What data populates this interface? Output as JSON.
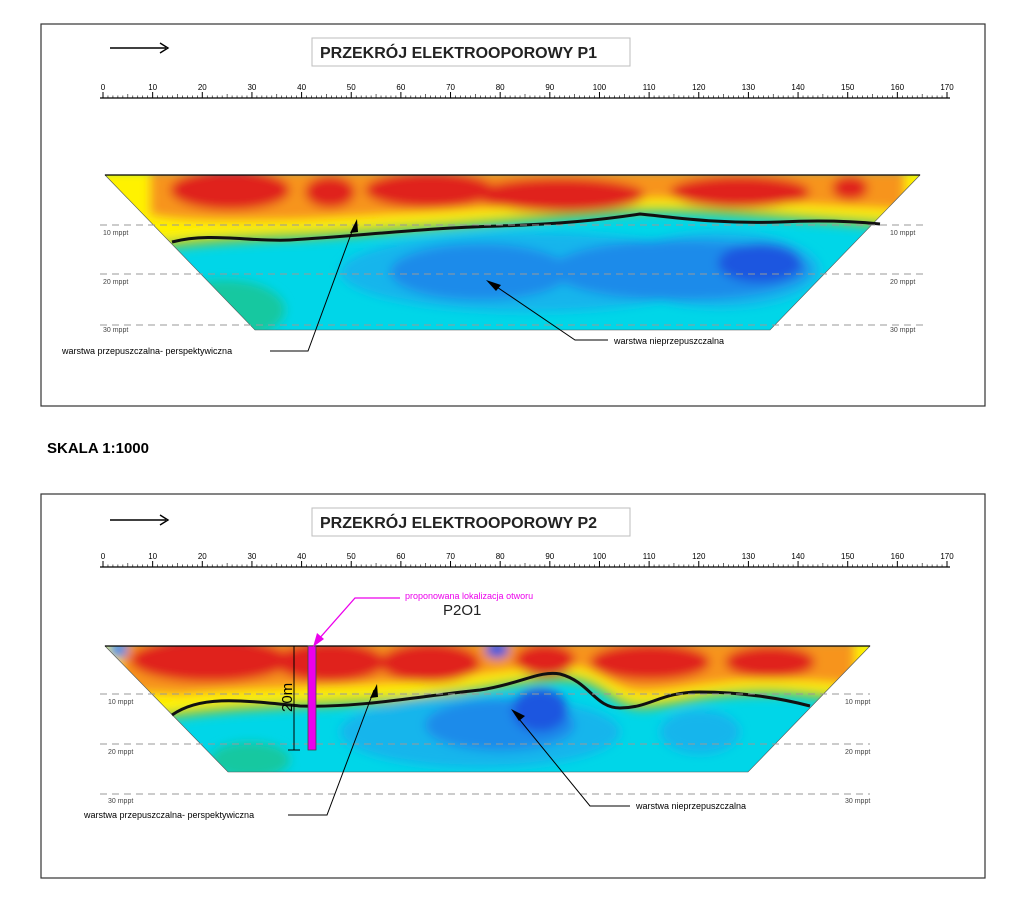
{
  "scale_label": "SKALA 1:1000",
  "colors": {
    "frame": "#333333",
    "high_resistivity": "#e0201b",
    "medium_high": "#f7941d",
    "medium": "#fff200",
    "transition": "#8dc63f",
    "low": "#00d6e8",
    "very_low": "#1a56e0",
    "marker": "#ec00ec"
  },
  "axis": {
    "ticks": [
      "0",
      "10",
      "20",
      "30",
      "40",
      "50",
      "60",
      "70",
      "80",
      "90",
      "100",
      "110",
      "120",
      "130",
      "140",
      "150",
      "160",
      "170"
    ]
  },
  "panels": [
    {
      "title": "PRZEKRÓJ ELEKTROOPOROWY P1",
      "direction_arrow": "arrow-right-icon",
      "depth_labels": [
        "10 mppt",
        "20 mppt",
        "30 mppt"
      ],
      "annotations": {
        "permeable": "warstwa przepuszczalna- perspektywiczna",
        "impermeable": "warstwa nieprzepuszczalna"
      }
    },
    {
      "title": "PRZEKRÓJ ELEKTROOPOROWY P2",
      "direction_arrow": "arrow-right-icon",
      "depth_labels": [
        "10 mppt",
        "20 mppt",
        "30 mppt"
      ],
      "annotations": {
        "permeable": "warstwa przepuszczalna- perspektywiczna",
        "impermeable": "warstwa nieprzepuszczalna",
        "proposed_location": "proponowana lokalizacja otworu",
        "borehole_id": "P2O1",
        "borehole_depth": "20m"
      }
    }
  ]
}
